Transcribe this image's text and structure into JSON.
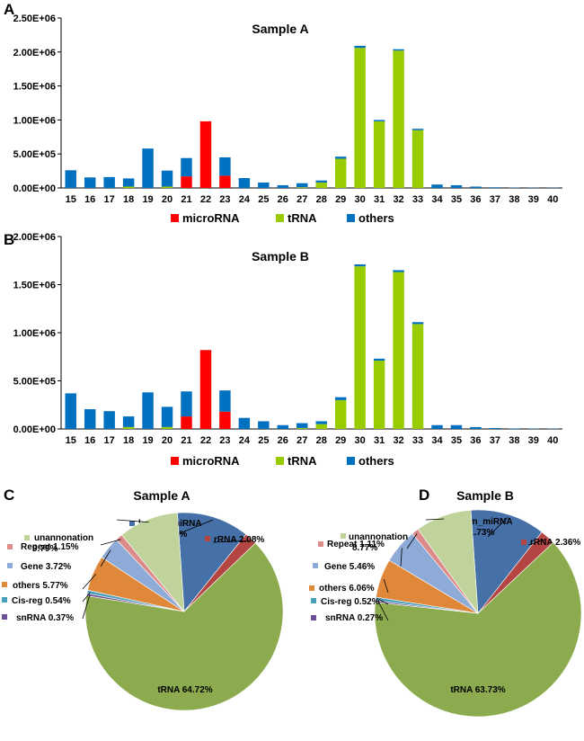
{
  "panels": {
    "a": "A",
    "b": "B",
    "c": "C",
    "d": "D"
  },
  "colors": {
    "microRNA": "#ff0000",
    "tRNA": "#99cc00",
    "others": "#0070c0",
    "axis": "#000000"
  },
  "chart_data": [
    {
      "type": "bar",
      "stacked": true,
      "title": "Sample A",
      "categories": [
        "15",
        "16",
        "17",
        "18",
        "19",
        "20",
        "21",
        "22",
        "23",
        "24",
        "25",
        "26",
        "27",
        "28",
        "29",
        "30",
        "31",
        "32",
        "33",
        "34",
        "35",
        "36",
        "37",
        "38",
        "39",
        "40"
      ],
      "ylim": [
        0,
        2500000
      ],
      "yticks": [
        "0.00E+00",
        "5.00E+05",
        "1.00E+06",
        "1.50E+06",
        "2.00E+06",
        "2.50E+06"
      ],
      "series": [
        {
          "name": "microRNA",
          "values": [
            0,
            0,
            0,
            0,
            0,
            0,
            170000,
            980000,
            180000,
            0,
            0,
            0,
            0,
            0,
            0,
            0,
            0,
            0,
            0,
            0,
            0,
            0,
            0,
            0,
            0,
            0
          ]
        },
        {
          "name": "tRNA",
          "values": [
            0,
            0,
            0,
            20000,
            0,
            20000,
            0,
            0,
            0,
            0,
            0,
            0,
            10000,
            80000,
            430000,
            2060000,
            980000,
            2020000,
            850000,
            0,
            0,
            0,
            0,
            0,
            0,
            0
          ]
        },
        {
          "name": "others",
          "values": [
            260000,
            155000,
            160000,
            120000,
            580000,
            235000,
            270000,
            0,
            270000,
            145000,
            80000,
            40000,
            60000,
            30000,
            30000,
            30000,
            20000,
            20000,
            20000,
            50000,
            40000,
            20000,
            10000,
            5000,
            4000,
            4000
          ]
        }
      ]
    },
    {
      "type": "bar",
      "stacked": true,
      "title": "Sample B",
      "categories": [
        "15",
        "16",
        "17",
        "18",
        "19",
        "20",
        "21",
        "22",
        "23",
        "24",
        "25",
        "26",
        "27",
        "28",
        "29",
        "30",
        "31",
        "32",
        "33",
        "34",
        "35",
        "36",
        "37",
        "38",
        "39",
        "40"
      ],
      "ylim": [
        0,
        2000000
      ],
      "yticks": [
        "0.00E+00",
        "5.00E+05",
        "1.00E+06",
        "1.50E+06",
        "2.00E+06"
      ],
      "series": [
        {
          "name": "microRNA",
          "values": [
            0,
            0,
            0,
            0,
            0,
            0,
            130000,
            820000,
            180000,
            0,
            0,
            0,
            0,
            0,
            0,
            0,
            0,
            0,
            0,
            0,
            0,
            0,
            0,
            0,
            0,
            0
          ]
        },
        {
          "name": "tRNA",
          "values": [
            0,
            0,
            0,
            20000,
            0,
            20000,
            0,
            0,
            0,
            0,
            0,
            0,
            10000,
            50000,
            300000,
            1690000,
            710000,
            1630000,
            1090000,
            0,
            0,
            0,
            0,
            0,
            0,
            0
          ]
        },
        {
          "name": "others",
          "values": [
            370000,
            205000,
            185000,
            110000,
            380000,
            210000,
            260000,
            0,
            220000,
            115000,
            80000,
            40000,
            50000,
            30000,
            30000,
            20000,
            20000,
            20000,
            20000,
            40000,
            40000,
            20000,
            10000,
            5000,
            4000,
            4000
          ]
        }
      ]
    },
    {
      "type": "pie",
      "title": "Sample A",
      "slices": [
        {
          "label": "known_miRNA",
          "pct": "11.85%",
          "value": 11.85,
          "color": "#4670a8"
        },
        {
          "label": "rRNA",
          "pct": "2.08%",
          "value": 2.08,
          "color": "#b54543"
        },
        {
          "label": "tRNA",
          "pct": "64.72%",
          "value": 64.72,
          "color": "#8cab4e"
        },
        {
          "label": "snRNA",
          "pct": "0.37%",
          "value": 0.37,
          "color": "#6d4f95"
        },
        {
          "label": "Cis-reg",
          "pct": "0.54%",
          "value": 0.54,
          "color": "#4aa0bb"
        },
        {
          "label": "others",
          "pct": "5.77%",
          "value": 5.77,
          "color": "#e0883a"
        },
        {
          "label": "Gene",
          "pct": "3.72%",
          "value": 3.72,
          "color": "#8eaad6"
        },
        {
          "label": "Repeat",
          "pct": "1.15%",
          "value": 1.15,
          "color": "#dd8a8a"
        },
        {
          "label": "unannonation",
          "pct": "9.79%",
          "value": 9.79,
          "color": "#bfd39b"
        }
      ]
    },
    {
      "type": "pie",
      "title": "Sample B",
      "slices": [
        {
          "label": "known_miRNA",
          "pct": "11.73%",
          "value": 11.73,
          "color": "#4670a8"
        },
        {
          "label": "rRNA",
          "pct": "2.36%",
          "value": 2.36,
          "color": "#b54543"
        },
        {
          "label": "tRNA",
          "pct": "63.73%",
          "value": 63.73,
          "color": "#8cab4e"
        },
        {
          "label": "snRNA",
          "pct": "0.27%",
          "value": 0.27,
          "color": "#6d4f95"
        },
        {
          "label": "Cis-reg",
          "pct": "0.52%",
          "value": 0.52,
          "color": "#4aa0bb"
        },
        {
          "label": "others",
          "pct": "6.06%",
          "value": 6.06,
          "color": "#e0883a"
        },
        {
          "label": "Gene",
          "pct": "5.46%",
          "value": 5.46,
          "color": "#8eaad6"
        },
        {
          "label": "Repeat",
          "pct": "1.11%",
          "value": 1.11,
          "color": "#dd8a8a"
        },
        {
          "label": "unannonation",
          "pct": "8.77%",
          "value": 8.77,
          "color": "#bfd39b"
        }
      ]
    }
  ]
}
